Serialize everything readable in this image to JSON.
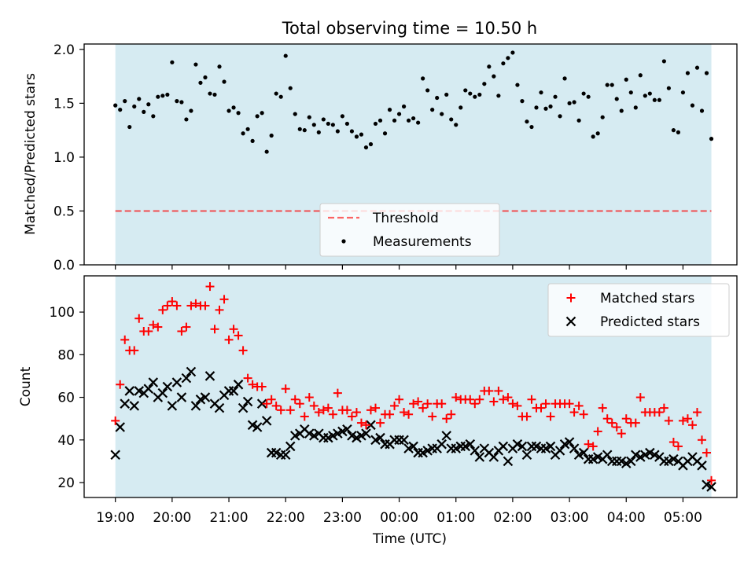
{
  "title": "Total observing time = 10.50 h",
  "colors": {
    "observing_band": "#add8e6",
    "threshold": "#ff0000",
    "measurements": "#000000",
    "matched": "#ff0000",
    "predicted": "#000000"
  },
  "chart_data": [
    {
      "type": "scatter",
      "panel": "top",
      "ylabel": "Matched/Predicted stars",
      "xlabel": "",
      "ylim": [
        0,
        2.05
      ],
      "xlim_hours": [
        -0.55,
        10.95
      ],
      "x_axis": "Time (UTC), shared with the lower panel",
      "yticks": [
        0.0,
        0.5,
        1.0,
        1.5,
        2.0
      ],
      "ytick_labels": [
        "0.0",
        "0.5",
        "1.0",
        "1.5",
        "2.0"
      ],
      "grid": false,
      "legend_position": "lower center",
      "legend": [
        "Threshold",
        "Measurements"
      ],
      "observing_window": [
        "19:00",
        "05:30"
      ],
      "threshold": 0.5,
      "threshold_style": "dashed",
      "measurements": {
        "name": "Measurements",
        "times": [
          "19:00",
          "19:05",
          "19:10",
          "19:15",
          "19:20",
          "19:25",
          "19:30",
          "19:35",
          "19:40",
          "19:45",
          "19:50",
          "19:55",
          "20:00",
          "20:05",
          "20:10",
          "20:15",
          "20:20",
          "20:25",
          "20:30",
          "20:35",
          "20:40",
          "20:45",
          "20:50",
          "20:55",
          "21:00",
          "21:05",
          "21:10",
          "21:15",
          "21:20",
          "21:25",
          "21:30",
          "21:35",
          "21:40",
          "21:45",
          "21:50",
          "21:55",
          "22:00",
          "22:05",
          "22:10",
          "22:15",
          "22:20",
          "22:25",
          "22:30",
          "22:35",
          "22:40",
          "22:45",
          "22:50",
          "22:55",
          "23:00",
          "23:05",
          "23:10",
          "23:15",
          "23:20",
          "23:25",
          "23:30",
          "23:35",
          "23:40",
          "23:45",
          "23:50",
          "23:55",
          "00:00",
          "00:05",
          "00:10",
          "00:15",
          "00:20",
          "00:25",
          "00:30",
          "00:35",
          "00:40",
          "00:45",
          "00:50",
          "00:55",
          "01:00",
          "01:05",
          "01:10",
          "01:15",
          "01:20",
          "01:25",
          "01:30",
          "01:35",
          "01:40",
          "01:45",
          "01:50",
          "01:55",
          "02:00",
          "02:05",
          "02:10",
          "02:15",
          "02:20",
          "02:25",
          "02:30",
          "02:35",
          "02:40",
          "02:45",
          "02:50",
          "02:55",
          "03:00",
          "03:05",
          "03:10",
          "03:15",
          "03:20",
          "03:25",
          "03:30",
          "03:35",
          "03:40",
          "03:45",
          "03:50",
          "03:55",
          "04:00",
          "04:05",
          "04:10",
          "04:15",
          "04:20",
          "04:25",
          "04:30",
          "04:35",
          "04:40",
          "04:45",
          "04:50",
          "04:55",
          "05:00",
          "05:05",
          "05:10",
          "05:15",
          "05:20",
          "05:25",
          "05:30"
        ],
        "values": [
          1.48,
          1.44,
          1.52,
          1.28,
          1.47,
          1.54,
          1.42,
          1.49,
          1.38,
          1.56,
          1.57,
          1.58,
          1.88,
          1.52,
          1.51,
          1.35,
          1.43,
          1.86,
          1.69,
          1.74,
          1.59,
          1.58,
          1.84,
          1.7,
          1.43,
          1.46,
          1.41,
          1.22,
          1.26,
          1.15,
          1.38,
          1.41,
          1.05,
          1.2,
          1.59,
          1.56,
          1.94,
          1.64,
          1.4,
          1.26,
          1.25,
          1.37,
          1.3,
          1.23,
          1.35,
          1.31,
          1.3,
          1.24,
          1.38,
          1.31,
          1.24,
          1.19,
          1.21,
          1.09,
          1.12,
          1.31,
          1.34,
          1.22,
          1.44,
          1.34,
          1.4,
          1.47,
          1.34,
          1.36,
          1.32,
          1.73,
          1.62,
          1.44,
          1.55,
          1.4,
          1.58,
          1.35,
          1.3,
          1.46,
          1.62,
          1.59,
          1.56,
          1.58,
          1.68,
          1.84,
          1.75,
          1.57,
          1.87,
          1.92,
          1.97,
          1.67,
          1.52,
          1.33,
          1.28,
          1.46,
          1.6,
          1.45,
          1.47,
          1.56,
          1.38,
          1.73,
          1.5,
          1.51,
          1.34,
          1.59,
          1.56,
          1.19,
          1.22,
          1.37,
          1.67,
          1.67,
          1.54,
          1.43,
          1.72,
          1.6,
          1.46,
          1.76,
          1.57,
          1.59,
          1.53,
          1.53,
          1.89,
          1.64,
          1.25,
          1.23,
          1.6,
          1.78,
          1.48,
          1.83,
          1.43,
          1.78,
          1.17
        ]
      }
    },
    {
      "type": "scatter",
      "panel": "bottom",
      "xlabel": "Time (UTC)",
      "ylabel": "Count",
      "ylim": [
        13,
        117
      ],
      "xlim_hours": [
        -0.55,
        10.95
      ],
      "yticks": [
        20,
        40,
        60,
        80,
        100
      ],
      "ytick_labels": [
        "20",
        "40",
        "60",
        "80",
        "100"
      ],
      "xticks": [
        "19:00",
        "20:00",
        "21:00",
        "22:00",
        "23:00",
        "00:00",
        "01:00",
        "02:00",
        "03:00",
        "04:00",
        "05:00"
      ],
      "grid": false,
      "legend_position": "upper right",
      "legend": [
        "Matched stars",
        "Predicted stars"
      ],
      "observing_window": [
        "19:00",
        "05:30"
      ],
      "series": [
        {
          "name": "Matched stars",
          "marker": "+",
          "times": [
            "19:00",
            "19:05",
            "19:10",
            "19:15",
            "19:20",
            "19:25",
            "19:30",
            "19:35",
            "19:40",
            "19:45",
            "19:50",
            "19:55",
            "20:00",
            "20:05",
            "20:10",
            "20:15",
            "20:20",
            "20:25",
            "20:30",
            "20:35",
            "20:40",
            "20:45",
            "20:50",
            "20:55",
            "21:00",
            "21:05",
            "21:10",
            "21:15",
            "21:20",
            "21:25",
            "21:30",
            "21:35",
            "21:40",
            "21:45",
            "21:50",
            "21:55",
            "22:00",
            "22:05",
            "22:10",
            "22:15",
            "22:20",
            "22:25",
            "22:30",
            "22:35",
            "22:40",
            "22:45",
            "22:50",
            "22:55",
            "23:00",
            "23:05",
            "23:10",
            "23:15",
            "23:20",
            "23:25",
            "23:30",
            "23:35",
            "23:40",
            "23:45",
            "23:50",
            "23:55",
            "00:00",
            "00:05",
            "00:10",
            "00:15",
            "00:20",
            "00:25",
            "00:30",
            "00:35",
            "00:40",
            "00:45",
            "00:50",
            "00:55",
            "01:00",
            "01:05",
            "01:10",
            "01:15",
            "01:20",
            "01:25",
            "01:30",
            "01:35",
            "01:40",
            "01:45",
            "01:50",
            "01:55",
            "02:00",
            "02:05",
            "02:10",
            "02:15",
            "02:20",
            "02:25",
            "02:30",
            "02:35",
            "02:40",
            "02:45",
            "02:50",
            "02:55",
            "03:00",
            "03:05",
            "03:10",
            "03:15",
            "03:20",
            "03:25",
            "03:30",
            "03:35",
            "03:40",
            "03:45",
            "03:50",
            "03:55",
            "04:00",
            "04:05",
            "04:10",
            "04:15",
            "04:20",
            "04:25",
            "04:30",
            "04:35",
            "04:40",
            "04:45",
            "04:50",
            "04:55",
            "05:00",
            "05:05",
            "05:10",
            "05:15",
            "05:20",
            "05:25",
            "05:30"
          ],
          "values": [
            49,
            66,
            87,
            82,
            82,
            97,
            91,
            91,
            94,
            93,
            101,
            103,
            105,
            103,
            91,
            93,
            103,
            104,
            103,
            103,
            112,
            92,
            101,
            106,
            87,
            92,
            89,
            82,
            69,
            66,
            65,
            65,
            57,
            59,
            56,
            54,
            64,
            54,
            59,
            57,
            51,
            60,
            56,
            53,
            54,
            55,
            52,
            62,
            54,
            54,
            51,
            53,
            48,
            47,
            54,
            55,
            48,
            52,
            52,
            56,
            59,
            53,
            52,
            57,
            58,
            55,
            57,
            51,
            57,
            57,
            50,
            52,
            60,
            59,
            59,
            59,
            57,
            59,
            63,
            63,
            58,
            63,
            59,
            60,
            57,
            56,
            51,
            51,
            59,
            55,
            55,
            57,
            51,
            57,
            57,
            57,
            57,
            53,
            56,
            52,
            38,
            37,
            44,
            55,
            50,
            48,
            46,
            43,
            50,
            48,
            48,
            60,
            53,
            53,
            53,
            53,
            55,
            49,
            39,
            37,
            49,
            50,
            47,
            53,
            40,
            34,
            21
          ]
        },
        {
          "name": "Predicted stars",
          "marker": "x",
          "times": [
            "19:00",
            "19:05",
            "19:10",
            "19:15",
            "19:20",
            "19:25",
            "19:30",
            "19:35",
            "19:40",
            "19:45",
            "19:50",
            "19:55",
            "20:00",
            "20:05",
            "20:10",
            "20:15",
            "20:20",
            "20:25",
            "20:30",
            "20:35",
            "20:40",
            "20:45",
            "20:50",
            "20:55",
            "21:00",
            "21:05",
            "21:10",
            "21:15",
            "21:20",
            "21:25",
            "21:30",
            "21:35",
            "21:40",
            "21:45",
            "21:50",
            "21:55",
            "22:00",
            "22:05",
            "22:10",
            "22:15",
            "22:20",
            "22:25",
            "22:30",
            "22:35",
            "22:40",
            "22:45",
            "22:50",
            "22:55",
            "23:00",
            "23:05",
            "23:10",
            "23:15",
            "23:20",
            "23:25",
            "23:30",
            "23:35",
            "23:40",
            "23:45",
            "23:50",
            "23:55",
            "00:00",
            "00:05",
            "00:10",
            "00:15",
            "00:20",
            "00:25",
            "00:30",
            "00:35",
            "00:40",
            "00:45",
            "00:50",
            "00:55",
            "01:00",
            "01:05",
            "01:10",
            "01:15",
            "01:20",
            "01:25",
            "01:30",
            "01:35",
            "01:40",
            "01:45",
            "01:50",
            "01:55",
            "02:00",
            "02:05",
            "02:10",
            "02:15",
            "02:20",
            "02:25",
            "02:30",
            "02:35",
            "02:40",
            "02:45",
            "02:50",
            "02:55",
            "03:00",
            "03:05",
            "03:10",
            "03:15",
            "03:20",
            "03:25",
            "03:30",
            "03:35",
            "03:40",
            "03:45",
            "03:50",
            "03:55",
            "04:00",
            "04:05",
            "04:10",
            "04:15",
            "04:20",
            "04:25",
            "04:30",
            "04:35",
            "04:40",
            "04:45",
            "04:50",
            "04:55",
            "05:00",
            "05:05",
            "05:10",
            "05:15",
            "05:20",
            "05:25",
            "05:30"
          ],
          "values": [
            33,
            46,
            57,
            63,
            56,
            63,
            62,
            64,
            67,
            60,
            62,
            65,
            56,
            67,
            60,
            69,
            72,
            56,
            59,
            60,
            70,
            57,
            55,
            61,
            63,
            63,
            66,
            55,
            58,
            47,
            46,
            57,
            49,
            34,
            34,
            33,
            33,
            37,
            42,
            43,
            45,
            43,
            42,
            43,
            41,
            41,
            42,
            43,
            44,
            45,
            42,
            41,
            42,
            43,
            47,
            40,
            41,
            38,
            38,
            40,
            40,
            40,
            36,
            37,
            34,
            34,
            35,
            36,
            36,
            38,
            42,
            36,
            36,
            37,
            37,
            38,
            35,
            32,
            36,
            34,
            32,
            35,
            37,
            30,
            36,
            38,
            37,
            33,
            37,
            37,
            36,
            36,
            37,
            33,
            35,
            38,
            39,
            36,
            33,
            34,
            31,
            31,
            32,
            31,
            33,
            30,
            30,
            30,
            29,
            30,
            33,
            32,
            33,
            34,
            33,
            32,
            30,
            30,
            31,
            30,
            28,
            30,
            32,
            30,
            28,
            19,
            18
          ]
        }
      ]
    }
  ]
}
